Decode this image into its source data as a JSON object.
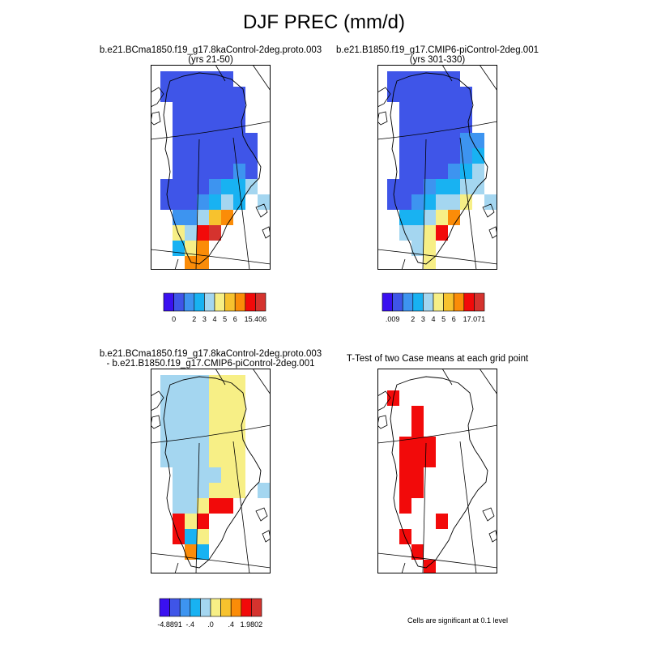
{
  "title": "DJF PREC (mm/d)",
  "colors": {
    "precip": [
      "#3a10f0",
      "#3f55e8",
      "#3d94f0",
      "#18b2f2",
      "#a4d6f0",
      "#f7ef86",
      "#f7c22e",
      "#fb8c08",
      "#f20a0a",
      "#d5332e"
    ],
    "diff": [
      "#3a10f0",
      "#3f55e8",
      "#3d94f0",
      "#18b2f2",
      "#a4d6f0",
      "#f7ef86",
      "#f7c22e",
      "#fb8c08",
      "#f20a0a",
      "#d5332e"
    ],
    "ttest": "#f20a0a",
    "outline": "#000000"
  },
  "chart_data": [
    {
      "type": "heatmap",
      "title_line1": "b.e21.BCma1850.f19_g17.8kaControl-2deg.proto.003",
      "title_line2": "(yrs 21-50)",
      "colorbar_labels": [
        "0",
        "",
        "2",
        "3",
        "4",
        "5",
        "6",
        "",
        "15.406"
      ],
      "cells": [
        [
          0,
          0,
          1,
          9
        ],
        [
          1,
          0,
          1,
          9
        ],
        [
          2,
          0,
          1,
          9
        ],
        [
          3,
          0,
          1,
          9
        ],
        [
          4,
          0,
          1,
          9
        ],
        [
          5,
          0,
          1,
          9
        ],
        [
          0,
          1,
          1,
          9
        ],
        [
          1,
          1,
          1,
          9
        ],
        [
          2,
          1,
          1,
          9
        ],
        [
          3,
          1,
          1,
          9
        ],
        [
          4,
          1,
          1,
          9
        ],
        [
          5,
          1,
          1,
          9
        ],
        [
          6,
          1,
          1,
          9
        ],
        [
          1,
          2,
          1,
          9
        ],
        [
          2,
          2,
          1,
          9
        ],
        [
          3,
          2,
          1,
          9
        ],
        [
          4,
          2,
          1,
          9
        ],
        [
          5,
          2,
          1,
          9
        ],
        [
          6,
          2,
          1,
          9
        ],
        [
          1,
          3,
          1,
          9
        ],
        [
          2,
          3,
          1,
          9
        ],
        [
          3,
          3,
          1,
          9
        ],
        [
          4,
          3,
          1,
          9
        ],
        [
          5,
          3,
          1,
          9
        ],
        [
          6,
          3,
          1,
          9
        ],
        [
          1,
          4,
          1,
          9
        ],
        [
          2,
          4,
          1,
          9
        ],
        [
          3,
          4,
          1,
          9
        ],
        [
          4,
          4,
          1,
          9
        ],
        [
          5,
          4,
          1,
          9
        ],
        [
          6,
          4,
          1,
          9
        ],
        [
          7,
          4,
          1,
          9
        ],
        [
          1,
          5,
          1,
          9
        ],
        [
          2,
          5,
          1,
          9
        ],
        [
          3,
          5,
          1,
          9
        ],
        [
          4,
          5,
          1,
          9
        ],
        [
          5,
          5,
          1,
          9
        ],
        [
          6,
          5,
          1,
          9
        ],
        [
          7,
          5,
          1,
          9
        ],
        [
          1,
          6,
          1,
          9
        ],
        [
          2,
          6,
          1,
          9
        ],
        [
          3,
          6,
          1,
          9
        ],
        [
          4,
          6,
          1,
          9
        ],
        [
          5,
          6,
          1,
          9
        ],
        [
          6,
          6,
          2,
          9
        ],
        [
          7,
          6,
          1,
          9
        ],
        [
          0,
          7,
          1,
          9
        ],
        [
          1,
          7,
          1,
          9
        ],
        [
          2,
          7,
          1,
          9
        ],
        [
          3,
          7,
          1,
          9
        ],
        [
          4,
          7,
          2,
          9
        ],
        [
          5,
          7,
          3,
          9
        ],
        [
          6,
          7,
          3,
          9
        ],
        [
          7,
          7,
          4,
          9
        ],
        [
          0,
          8,
          1,
          9
        ],
        [
          1,
          8,
          1,
          9
        ],
        [
          2,
          8,
          1,
          9
        ],
        [
          3,
          8,
          2,
          9
        ],
        [
          4,
          8,
          3,
          9
        ],
        [
          5,
          8,
          4,
          9
        ],
        [
          6,
          8,
          3,
          9
        ],
        [
          8,
          8,
          4,
          9
        ],
        [
          1,
          9,
          2,
          9
        ],
        [
          2,
          9,
          2,
          9
        ],
        [
          3,
          9,
          4,
          9
        ],
        [
          4,
          9,
          6,
          9
        ],
        [
          5,
          9,
          7,
          9
        ],
        [
          1,
          10,
          5,
          9
        ],
        [
          2,
          10,
          4,
          9
        ],
        [
          3,
          10,
          8,
          9
        ],
        [
          4,
          10,
          9,
          9
        ],
        [
          1,
          11,
          3,
          9
        ],
        [
          2,
          11,
          5,
          9
        ],
        [
          3,
          11,
          7,
          9
        ],
        [
          2,
          12,
          7,
          9
        ],
        [
          3,
          12,
          7,
          9
        ]
      ],
      "colorbar_min": "0",
      "colorbar_max": "15.406"
    },
    {
      "type": "heatmap",
      "title_line1": "b.e21.B1850.f19_g17.CMIP6-piControl-2deg.001",
      "title_line2": "(yrs 301-330)",
      "colorbar_labels": [
        ".009",
        "",
        "2",
        "3",
        "4",
        "5",
        "6",
        "",
        "17.071"
      ],
      "cells": [
        [
          0,
          0,
          1,
          9
        ],
        [
          1,
          0,
          1,
          9
        ],
        [
          2,
          0,
          1,
          9
        ],
        [
          3,
          0,
          1,
          9
        ],
        [
          4,
          0,
          1,
          9
        ],
        [
          5,
          0,
          1,
          9
        ],
        [
          0,
          1,
          1,
          9
        ],
        [
          1,
          1,
          1,
          9
        ],
        [
          2,
          1,
          1,
          9
        ],
        [
          3,
          1,
          1,
          9
        ],
        [
          4,
          1,
          1,
          9
        ],
        [
          5,
          1,
          1,
          9
        ],
        [
          6,
          1,
          1,
          9
        ],
        [
          1,
          2,
          1,
          9
        ],
        [
          2,
          2,
          1,
          9
        ],
        [
          3,
          2,
          1,
          9
        ],
        [
          4,
          2,
          1,
          9
        ],
        [
          5,
          2,
          1,
          9
        ],
        [
          6,
          2,
          1,
          9
        ],
        [
          1,
          3,
          1,
          9
        ],
        [
          2,
          3,
          1,
          9
        ],
        [
          3,
          3,
          1,
          9
        ],
        [
          4,
          3,
          1,
          9
        ],
        [
          5,
          3,
          1,
          9
        ],
        [
          6,
          3,
          1,
          9
        ],
        [
          1,
          4,
          1,
          9
        ],
        [
          2,
          4,
          1,
          9
        ],
        [
          3,
          4,
          1,
          9
        ],
        [
          4,
          4,
          1,
          9
        ],
        [
          5,
          4,
          1,
          9
        ],
        [
          6,
          4,
          2,
          9
        ],
        [
          7,
          4,
          2,
          9
        ],
        [
          1,
          5,
          1,
          9
        ],
        [
          2,
          5,
          1,
          9
        ],
        [
          3,
          5,
          1,
          9
        ],
        [
          4,
          5,
          1,
          9
        ],
        [
          5,
          5,
          1,
          9
        ],
        [
          6,
          5,
          2,
          9
        ],
        [
          7,
          5,
          3,
          9
        ],
        [
          1,
          6,
          1,
          9
        ],
        [
          2,
          6,
          1,
          9
        ],
        [
          3,
          6,
          1,
          9
        ],
        [
          4,
          6,
          1,
          9
        ],
        [
          5,
          6,
          2,
          9
        ],
        [
          6,
          6,
          3,
          9
        ],
        [
          7,
          6,
          4,
          9
        ],
        [
          0,
          7,
          1,
          9
        ],
        [
          1,
          7,
          1,
          9
        ],
        [
          2,
          7,
          1,
          9
        ],
        [
          3,
          7,
          2,
          9
        ],
        [
          4,
          7,
          3,
          9
        ],
        [
          5,
          7,
          3,
          9
        ],
        [
          6,
          7,
          4,
          9
        ],
        [
          7,
          7,
          4,
          9
        ],
        [
          0,
          8,
          1,
          9
        ],
        [
          1,
          8,
          1,
          9
        ],
        [
          2,
          8,
          2,
          9
        ],
        [
          3,
          8,
          3,
          9
        ],
        [
          4,
          8,
          4,
          9
        ],
        [
          5,
          8,
          4,
          9
        ],
        [
          6,
          8,
          5,
          9
        ],
        [
          8,
          8,
          4,
          9
        ],
        [
          1,
          9,
          3,
          9
        ],
        [
          2,
          9,
          3,
          9
        ],
        [
          3,
          9,
          4,
          9
        ],
        [
          4,
          9,
          5,
          9
        ],
        [
          5,
          9,
          7,
          9
        ],
        [
          1,
          10,
          4,
          9
        ],
        [
          2,
          10,
          4,
          9
        ],
        [
          3,
          10,
          5,
          9
        ],
        [
          4,
          10,
          8,
          9
        ],
        [
          2,
          11,
          4,
          9
        ],
        [
          3,
          11,
          5,
          9
        ],
        [
          3,
          12,
          5,
          9
        ]
      ],
      "colorbar_min": ".009",
      "colorbar_max": "17.071"
    },
    {
      "type": "heatmap",
      "title_line1": "b.e21.BCma1850.f19_g17.8kaControl-2deg.proto.003",
      "title_line2": "- b.e21.B1850.f19_g17.CMIP6-piControl-2deg.001",
      "colorbar_labels": [
        "-4.8891",
        "",
        "-.4",
        "",
        ".0",
        "",
        ".4",
        "",
        "1.9802"
      ],
      "cells": [
        [
          0,
          0,
          4,
          9
        ],
        [
          1,
          0,
          4,
          9
        ],
        [
          2,
          0,
          4,
          9
        ],
        [
          3,
          0,
          4,
          9
        ],
        [
          4,
          0,
          5,
          9
        ],
        [
          5,
          0,
          5,
          9
        ],
        [
          6,
          0,
          5,
          9
        ],
        [
          0,
          1,
          4,
          9
        ],
        [
          1,
          1,
          4,
          9
        ],
        [
          2,
          1,
          4,
          9
        ],
        [
          3,
          1,
          4,
          9
        ],
        [
          4,
          1,
          5,
          9
        ],
        [
          5,
          1,
          5,
          9
        ],
        [
          6,
          1,
          5,
          9
        ],
        [
          0,
          2,
          4,
          9
        ],
        [
          1,
          2,
          4,
          9
        ],
        [
          2,
          2,
          4,
          9
        ],
        [
          3,
          2,
          4,
          9
        ],
        [
          4,
          2,
          5,
          9
        ],
        [
          5,
          2,
          5,
          9
        ],
        [
          6,
          2,
          5,
          9
        ],
        [
          0,
          3,
          4,
          9
        ],
        [
          1,
          3,
          4,
          9
        ],
        [
          2,
          3,
          4,
          9
        ],
        [
          3,
          3,
          4,
          9
        ],
        [
          4,
          3,
          5,
          9
        ],
        [
          5,
          3,
          5,
          9
        ],
        [
          6,
          3,
          5,
          9
        ],
        [
          0,
          4,
          4,
          9
        ],
        [
          1,
          4,
          4,
          9
        ],
        [
          2,
          4,
          4,
          9
        ],
        [
          3,
          4,
          4,
          9
        ],
        [
          4,
          4,
          5,
          9
        ],
        [
          5,
          4,
          5,
          9
        ],
        [
          6,
          4,
          5,
          9
        ],
        [
          0,
          5,
          4,
          9
        ],
        [
          1,
          5,
          4,
          9
        ],
        [
          2,
          5,
          4,
          9
        ],
        [
          3,
          5,
          4,
          9
        ],
        [
          4,
          5,
          5,
          9
        ],
        [
          5,
          5,
          5,
          9
        ],
        [
          6,
          5,
          5,
          9
        ],
        [
          1,
          6,
          4,
          9
        ],
        [
          2,
          6,
          4,
          9
        ],
        [
          3,
          6,
          4,
          9
        ],
        [
          4,
          6,
          4,
          9
        ],
        [
          5,
          6,
          5,
          9
        ],
        [
          6,
          6,
          5,
          9
        ],
        [
          1,
          7,
          4,
          9
        ],
        [
          2,
          7,
          4,
          9
        ],
        [
          3,
          7,
          4,
          9
        ],
        [
          4,
          7,
          5,
          9
        ],
        [
          5,
          7,
          5,
          9
        ],
        [
          6,
          7,
          5,
          9
        ],
        [
          8,
          7,
          4,
          9
        ],
        [
          1,
          8,
          4,
          9
        ],
        [
          2,
          8,
          4,
          9
        ],
        [
          3,
          8,
          5,
          9
        ],
        [
          4,
          8,
          8,
          9
        ],
        [
          5,
          8,
          8,
          9
        ],
        [
          1,
          9,
          8,
          9
        ],
        [
          2,
          9,
          5,
          9
        ],
        [
          3,
          9,
          8,
          9
        ],
        [
          1,
          10,
          8,
          9
        ],
        [
          2,
          10,
          3,
          9
        ],
        [
          3,
          10,
          5,
          9
        ],
        [
          2,
          11,
          7,
          9
        ],
        [
          3,
          11,
          3,
          9
        ]
      ],
      "colorbar_min": "-4.8891",
      "colorbar_max": "1.9802"
    },
    {
      "type": "heatmap",
      "title_line1": "T-Test of two Case means at each grid point",
      "title_line2": "",
      "colorbar_labels": [],
      "note": "Cells are significant at 0.1 level",
      "cells": [
        [
          0,
          1,
          1,
          1
        ],
        [
          2,
          2,
          1,
          1
        ],
        [
          2,
          3,
          1,
          1
        ],
        [
          1,
          4,
          1,
          1
        ],
        [
          2,
          4,
          1,
          1
        ],
        [
          3,
          4,
          1,
          1
        ],
        [
          1,
          5,
          1,
          1
        ],
        [
          2,
          5,
          1,
          1
        ],
        [
          3,
          5,
          1,
          1
        ],
        [
          1,
          6,
          1,
          1
        ],
        [
          2,
          6,
          1,
          1
        ],
        [
          1,
          7,
          1,
          1
        ],
        [
          2,
          7,
          1,
          1
        ],
        [
          1,
          8,
          1,
          1
        ],
        [
          4,
          9,
          1,
          1
        ],
        [
          1,
          10,
          1,
          1
        ],
        [
          2,
          11,
          1,
          1
        ],
        [
          3,
          12,
          1,
          1
        ]
      ]
    }
  ]
}
